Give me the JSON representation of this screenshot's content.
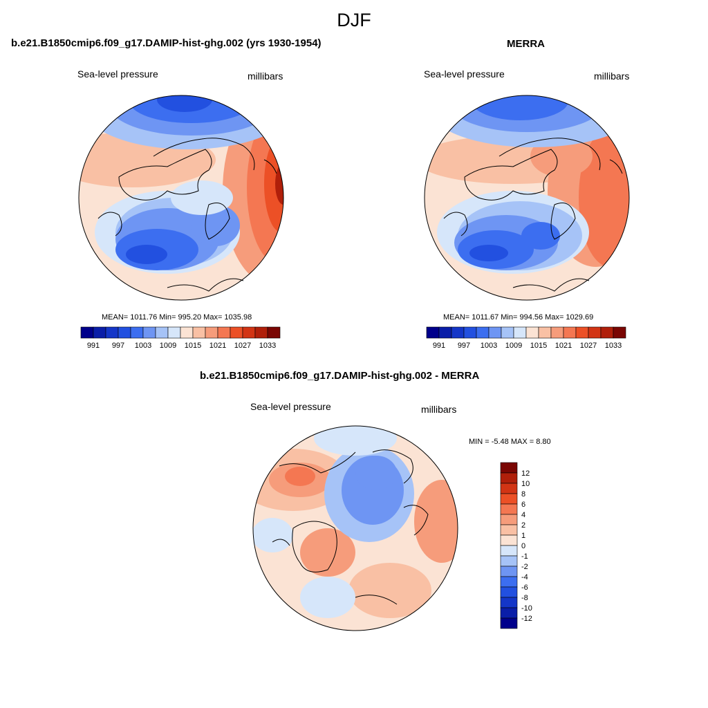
{
  "figure": {
    "title": "DJF"
  },
  "panels": [
    {
      "id": "model",
      "title": "b.e21.B1850cmip6.f09_g17.DAMIP-hist-ghg.002 (yrs 1930-1954)",
      "left_label": "Sea-level pressure",
      "right_label": "millibars",
      "stats": "MEAN= 1011.76  Min= 995.20  Max= 1035.98"
    },
    {
      "id": "obs",
      "title": "MERRA",
      "left_label": "Sea-level pressure",
      "right_label": "millibars",
      "stats": "MEAN= 1011.67  Min= 994.56  Max= 1029.69"
    },
    {
      "id": "diff",
      "title": "b.e21.B1850cmip6.f09_g17.DAMIP-hist-ghg.002 - MERRA",
      "left_label": "Sea-level pressure",
      "right_label": "millibars",
      "stats": "MIN =  -5.48 MAX =   8.80"
    }
  ],
  "colorbars": {
    "abs": {
      "colors": [
        "#00008b",
        "#0a1ea8",
        "#1436c8",
        "#2250e0",
        "#3c6ef0",
        "#6e95f3",
        "#a6c3f7",
        "#d6e6fa",
        "#fbe3d4",
        "#f9c0a4",
        "#f69c7b",
        "#f47752",
        "#ec5026",
        "#d23414",
        "#b01f0a",
        "#7a0603"
      ],
      "tick_labels": [
        "991",
        "997",
        "1003",
        "1009",
        "1015",
        "1021",
        "1027",
        "1033"
      ]
    },
    "diff": {
      "colors": [
        "#7a0603",
        "#b01f0a",
        "#d23414",
        "#ec5026",
        "#f47752",
        "#f69c7b",
        "#f9c0a4",
        "#fbe3d4",
        "#d6e6fa",
        "#a6c3f7",
        "#6e95f3",
        "#3c6ef0",
        "#2250e0",
        "#1436c8",
        "#0a1ea8",
        "#00008b"
      ],
      "tick_labels": [
        "12",
        "10",
        "8",
        "6",
        "4",
        "2",
        "1",
        "0",
        "-1",
        "-2",
        "-4",
        "-6",
        "-8",
        "-10",
        "-12"
      ]
    }
  }
}
